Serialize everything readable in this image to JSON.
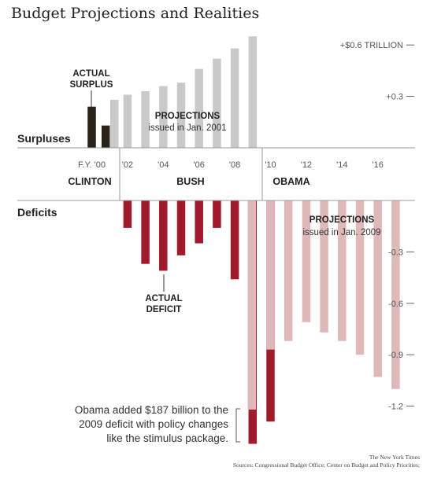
{
  "chart_data": {
    "type": "bar",
    "title": "Budget Projections and Realities",
    "surplus_label": "Surpluses",
    "deficit_label": "Deficits",
    "unit": "trillion dollars",
    "ylim": [
      -1.35,
      0.72
    ],
    "y_ticks": [
      {
        "value": 0.6,
        "label": "+$0.6 TRILLION"
      },
      {
        "value": 0.3,
        "label": "+0.3"
      },
      {
        "value": -0.3,
        "label": "-0.3"
      },
      {
        "value": -0.6,
        "label": "-0.6"
      },
      {
        "value": -0.9,
        "label": "-0.9"
      },
      {
        "value": -1.2,
        "label": "-1.2"
      }
    ],
    "x_ticks": [
      {
        "year": 2000,
        "label": "F.Y. '00"
      },
      {
        "year": 2002,
        "label": "'02"
      },
      {
        "year": 2004,
        "label": "'04"
      },
      {
        "year": 2006,
        "label": "'06"
      },
      {
        "year": 2008,
        "label": "'08"
      },
      {
        "year": 2010,
        "label": "'10"
      },
      {
        "year": 2012,
        "label": "'12"
      },
      {
        "year": 2014,
        "label": "'14"
      },
      {
        "year": 2016,
        "label": "'16"
      }
    ],
    "eras": [
      {
        "label": "CLINTON"
      },
      {
        "label": "BUSH"
      },
      {
        "label": "OBAMA"
      }
    ],
    "series": [
      {
        "name": "Actual surplus",
        "color": "#2a2118",
        "points": [
          {
            "year": 2000,
            "value": 0.24
          },
          {
            "year": 2001,
            "value": 0.13
          }
        ]
      },
      {
        "name": "Projections issued in Jan. 2001",
        "color": "#c9c9c9",
        "points": [
          {
            "year": 2001,
            "value": 0.28
          },
          {
            "year": 2002,
            "value": 0.31
          },
          {
            "year": 2003,
            "value": 0.33
          },
          {
            "year": 2004,
            "value": 0.36
          },
          {
            "year": 2005,
            "value": 0.38
          },
          {
            "year": 2006,
            "value": 0.46
          },
          {
            "year": 2007,
            "value": 0.52
          },
          {
            "year": 2008,
            "value": 0.58
          },
          {
            "year": 2009,
            "value": 0.65
          }
        ]
      },
      {
        "name": "Actual deficit",
        "color": "#a3192c",
        "points": [
          {
            "year": 2002,
            "value": -0.16
          },
          {
            "year": 2003,
            "value": -0.37
          },
          {
            "year": 2004,
            "value": -0.41
          },
          {
            "year": 2005,
            "value": -0.32
          },
          {
            "year": 2006,
            "value": -0.25
          },
          {
            "year": 2007,
            "value": -0.16
          },
          {
            "year": 2008,
            "value": -0.46
          },
          {
            "year": 2009,
            "value": -1.42
          },
          {
            "year": 2010,
            "value": -1.29
          }
        ]
      },
      {
        "name": "Projections issued in Jan. 2009",
        "color": "#dfb9b9",
        "points": [
          {
            "year": 2009,
            "value": -1.22
          },
          {
            "year": 2010,
            "value": -0.87
          },
          {
            "year": 2011,
            "value": -0.82
          },
          {
            "year": 2012,
            "value": -0.71
          },
          {
            "year": 2013,
            "value": -0.77
          },
          {
            "year": 2014,
            "value": -0.82
          },
          {
            "year": 2015,
            "value": -0.9
          },
          {
            "year": 2016,
            "value": -1.03
          },
          {
            "year": 2017,
            "value": -1.1
          }
        ]
      }
    ],
    "annotations": {
      "actual_surplus": [
        "ACTUAL",
        "SURPLUS"
      ],
      "projections_2001": {
        "head": "PROJECTIONS",
        "sub": "issued in Jan. 2001"
      },
      "actual_deficit": [
        "ACTUAL",
        "DEFICIT"
      ],
      "projections_2009": {
        "head": "PROJECTIONS",
        "sub": "issued in Jan. 2009"
      },
      "obama_note": [
        "Obama added $187 billion to the",
        "2009 deficit with policy changes",
        "like the stimulus package."
      ]
    },
    "credit": "The New York Times",
    "sources": "Sources: Congressional Budget Office; Center on Budget and Policy Priorities;"
  }
}
